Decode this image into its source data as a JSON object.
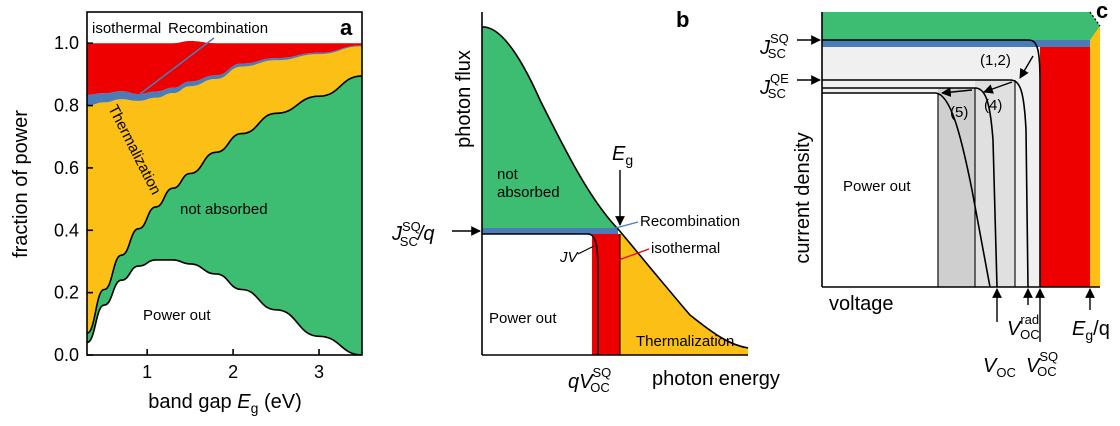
{
  "colors": {
    "power_out": "#ffffff",
    "not_absorbed": "#3cbd72",
    "thermalization": "#fcbf16",
    "recombination": "#4a7db8",
    "isothermal": "#ee0000",
    "recombination_label": "#4a7db8",
    "isothermal_label": "#ee0000",
    "not_absorbed_label": "#e6f5ea",
    "gray_light": "#f0f0f0",
    "gray_mid": "#e0e0e0",
    "gray_dark": "#cfcfcf"
  },
  "chart_data": [
    {
      "panel_label": "a",
      "type": "area",
      "xlabel": "band gap ",
      "xlabel_italic": "E",
      "xlabel_sub": "g",
      "xlabel_tail": " (eV)",
      "ylabel": "fraction of power",
      "xlim": [
        0.3,
        3.5
      ],
      "ylim": [
        0,
        1.1
      ],
      "xticks": [
        "1",
        "2",
        "3"
      ],
      "yticks": [
        "0.0",
        "0.2",
        "0.4",
        "0.6",
        "0.8",
        "1.0"
      ],
      "x": [
        0.3,
        0.5,
        0.7,
        0.9,
        1.1,
        1.3,
        1.5,
        1.8,
        2.1,
        2.5,
        3.0,
        3.5
      ],
      "series": [
        {
          "name": "Power out",
          "values": [
            0.04,
            0.16,
            0.24,
            0.285,
            0.305,
            0.305,
            0.292,
            0.26,
            0.21,
            0.145,
            0.06,
            0.0
          ]
        },
        {
          "name": "not absorbed",
          "values": [
            0.03,
            0.05,
            0.08,
            0.12,
            0.17,
            0.23,
            0.29,
            0.39,
            0.5,
            0.63,
            0.77,
            0.895
          ]
        },
        {
          "name": "Thermalization",
          "values": [
            0.73,
            0.6,
            0.5,
            0.41,
            0.35,
            0.305,
            0.28,
            0.235,
            0.215,
            0.17,
            0.135,
            0.095
          ]
        },
        {
          "name": "Recombination",
          "values": [
            0.035,
            0.03,
            0.026,
            0.022,
            0.02,
            0.017,
            0.015,
            0.012,
            0.01,
            0.007,
            0.004,
            0.003
          ]
        },
        {
          "name": "isothermal",
          "values": [
            0.165,
            0.16,
            0.154,
            0.163,
            0.155,
            0.143,
            0.13,
            0.103,
            0.065,
            0.048,
            0.031,
            0.007
          ]
        }
      ],
      "labels": {
        "power_out": "Power out",
        "not_absorbed": "not absorbed",
        "thermalization": "Thermalization",
        "recombination": "Recombination",
        "isothermal": "isothermal"
      }
    },
    {
      "panel_label": "b",
      "type": "area",
      "xlabel": "photon energy",
      "ylabel": "photon flux",
      "labels": {
        "eg_main": "E",
        "eg_sub": "g",
        "jsc_main": "J",
        "jsc_sup": "SQ",
        "jsc_sub": "SC",
        "jsc_tail": "/q",
        "jv": "JV",
        "recombination": "Recombination",
        "isothermal": "isothermal",
        "not_absorbed_1": "not",
        "not_absorbed_2": "absorbed",
        "power_out": "Power out",
        "thermalization": "Thermalization",
        "voc_pre": "qV",
        "voc_sup": "SQ",
        "voc_sub": "OC"
      }
    },
    {
      "panel_label": "c",
      "type": "area",
      "xlabel": "voltage",
      "ylabel": "current density",
      "labels": {
        "jsc_sq_main": "J",
        "jsc_sq_sup": "SQ",
        "jsc_sq_sub": "SC",
        "jsc_qe_main": "J",
        "jsc_qe_sup": "QE",
        "jsc_qe_sub": "SC",
        "curve_12": "(1,2)",
        "curve_4": "(4)",
        "curve_5": "(5)",
        "power_out": "Power out",
        "voc_main": "V",
        "voc_sub": "OC",
        "vrad_main": "V",
        "vrad_sup": "rad",
        "vrad_sub": "OC",
        "vsq_main": "V",
        "vsq_sup": "SQ",
        "vsq_sub": "OC",
        "eg_main": "E",
        "eg_sub": "g",
        "eg_tail": "/q"
      }
    }
  ]
}
